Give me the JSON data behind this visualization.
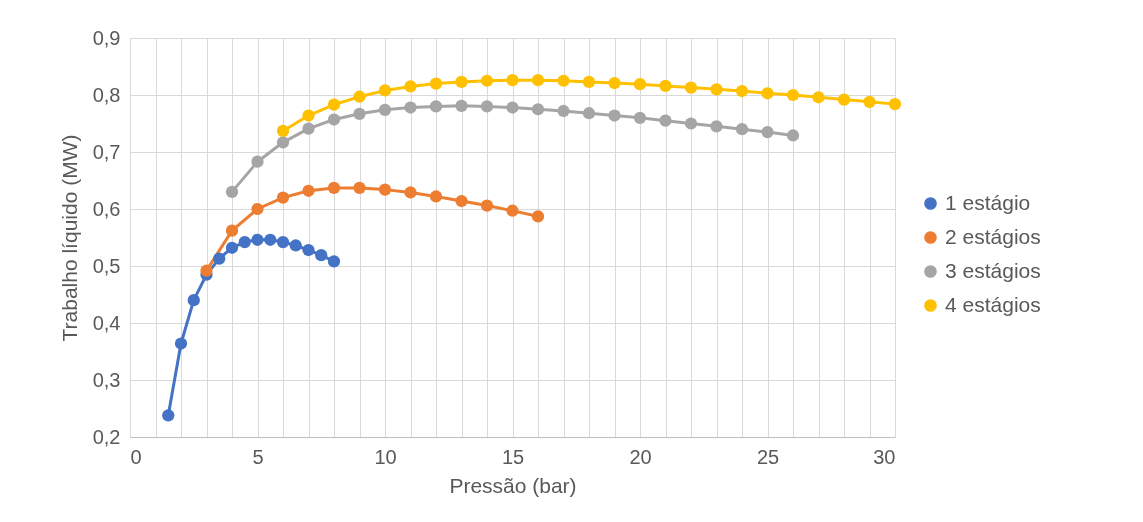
{
  "chart_data": {
    "type": "line",
    "xlabel": "Pressão (bar)",
    "ylabel": "Trabalho líquido (MW)",
    "xlim": [
      0,
      30
    ],
    "ylim": [
      0.2,
      0.9
    ],
    "xticks": [
      0,
      {
        "value": 1,
        "label": null
      },
      {
        "value": 2,
        "label": null
      },
      {
        "value": 3,
        "label": null
      },
      {
        "value": 4,
        "label": null
      },
      5,
      {
        "value": 6,
        "label": null
      },
      {
        "value": 7,
        "label": null
      },
      {
        "value": 8,
        "label": null
      },
      {
        "value": 9,
        "label": null
      },
      10,
      {
        "value": 11,
        "label": null
      },
      {
        "value": 12,
        "label": null
      },
      {
        "value": 13,
        "label": null
      },
      {
        "value": 14,
        "label": null
      },
      15,
      {
        "value": 16,
        "label": null
      },
      {
        "value": 17,
        "label": null
      },
      {
        "value": 18,
        "label": null
      },
      {
        "value": 19,
        "label": null
      },
      20,
      {
        "value": 21,
        "label": null
      },
      {
        "value": 22,
        "label": null
      },
      {
        "value": 23,
        "label": null
      },
      {
        "value": 24,
        "label": null
      },
      25,
      {
        "value": 26,
        "label": null
      },
      {
        "value": 27,
        "label": null
      },
      {
        "value": 28,
        "label": null
      },
      {
        "value": 29,
        "label": null
      },
      30
    ],
    "yticks": [
      {
        "value": 0.2,
        "label": "0,2"
      },
      {
        "value": 0.3,
        "label": "0,3"
      },
      {
        "value": 0.4,
        "label": "0,4"
      },
      {
        "value": 0.5,
        "label": "0,5"
      },
      {
        "value": 0.6,
        "label": "0,6"
      },
      {
        "value": 0.7,
        "label": "0,7"
      },
      {
        "value": 0.8,
        "label": "0,8"
      },
      {
        "value": 0.9,
        "label": "0,9"
      }
    ],
    "grid": true,
    "legend": "right",
    "marker": "circle",
    "line_style": "solid",
    "series": [
      {
        "name": "1 estágio",
        "color": "#4472c4",
        "x": [
          1.5,
          2,
          2.5,
          3,
          3.5,
          4,
          4.5,
          5,
          5.5,
          6,
          6.5,
          7,
          7.5,
          8
        ],
        "values": [
          0.238,
          0.364,
          0.44,
          0.485,
          0.513,
          0.532,
          0.542,
          0.546,
          0.546,
          0.542,
          0.536,
          0.528,
          0.519,
          0.508
        ]
      },
      {
        "name": "2 estágios",
        "color": "#ed7d31",
        "x": [
          3,
          4,
          5,
          6,
          7,
          8,
          9,
          10,
          11,
          12,
          13,
          14,
          15,
          16
        ],
        "values": [
          0.492,
          0.562,
          0.6,
          0.62,
          0.632,
          0.637,
          0.637,
          0.634,
          0.629,
          0.622,
          0.614,
          0.606,
          0.597,
          0.587
        ]
      },
      {
        "name": "3 estágios",
        "color": "#a5a5a5",
        "x": [
          4,
          5,
          6,
          7,
          8,
          9,
          10,
          11,
          12,
          13,
          14,
          15,
          16,
          17,
          18,
          19,
          20,
          21,
          22,
          23,
          24,
          25,
          26
        ],
        "values": [
          0.63,
          0.683,
          0.717,
          0.741,
          0.757,
          0.767,
          0.774,
          0.778,
          0.78,
          0.781,
          0.78,
          0.778,
          0.775,
          0.772,
          0.768,
          0.764,
          0.76,
          0.755,
          0.75,
          0.745,
          0.74,
          0.735,
          0.729
        ]
      },
      {
        "name": "4 estágios",
        "color": "#ffc000",
        "x": [
          6,
          7,
          8,
          9,
          10,
          11,
          12,
          13,
          14,
          15,
          16,
          17,
          18,
          19,
          20,
          21,
          22,
          23,
          24,
          25,
          26,
          27,
          28,
          29,
          30
        ],
        "values": [
          0.737,
          0.764,
          0.783,
          0.797,
          0.808,
          0.815,
          0.82,
          0.823,
          0.825,
          0.826,
          0.826,
          0.825,
          0.823,
          0.821,
          0.819,
          0.816,
          0.813,
          0.81,
          0.807,
          0.803,
          0.8,
          0.796,
          0.792,
          0.788,
          0.784
        ]
      }
    ]
  }
}
